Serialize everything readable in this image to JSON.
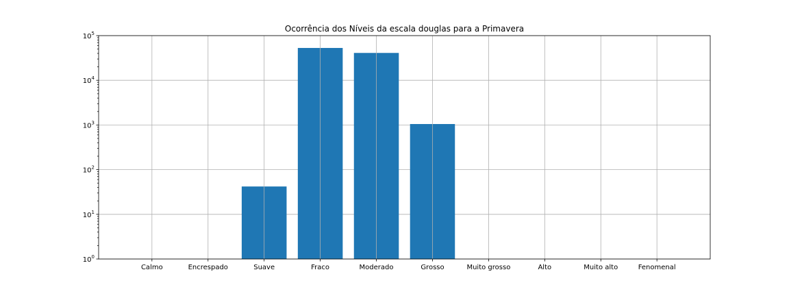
{
  "chart_data": {
    "type": "bar",
    "title": "Ocorrência dos Níveis da escala douglas para a Primavera",
    "xlabel": "",
    "ylabel": "",
    "yscale": "log",
    "ylim": [
      1,
      100000
    ],
    "grid": true,
    "color": "#1f77b4",
    "categories": [
      "Calmo",
      "Encrespado",
      "Suave",
      "Fraco",
      "Moderado",
      "Grosso",
      "Muito grosso",
      "Alto",
      "Muito alto",
      "Fenomenal"
    ],
    "values": [
      0,
      0,
      42,
      53000,
      41000,
      1050,
      0,
      0,
      0,
      0
    ],
    "y_ticks": [
      {
        "value": 1,
        "base": "10",
        "exp": "0"
      },
      {
        "value": 10,
        "base": "10",
        "exp": "1"
      },
      {
        "value": 100,
        "base": "10",
        "exp": "2"
      },
      {
        "value": 1000,
        "base": "10",
        "exp": "3"
      },
      {
        "value": 10000,
        "base": "10",
        "exp": "4"
      },
      {
        "value": 100000,
        "base": "10",
        "exp": "5"
      }
    ]
  }
}
